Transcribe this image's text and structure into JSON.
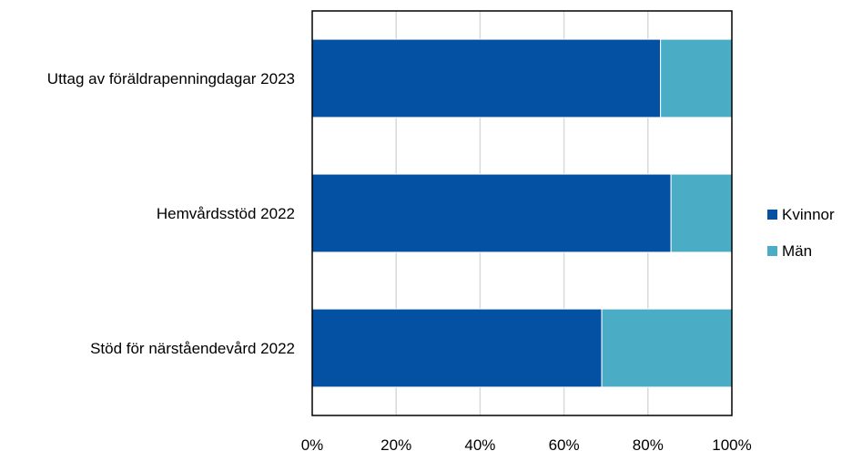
{
  "chart_data": {
    "type": "bar",
    "orientation": "horizontal",
    "stacked": true,
    "categories": [
      "Uttag av föräldrapenningdagar 2023",
      "Hemvårdsstöd 2022",
      "Stöd för närståendevård 2022"
    ],
    "series": [
      {
        "name": "Kvinnor",
        "values": [
          83,
          85.5,
          69
        ],
        "color": "#0451a4"
      },
      {
        "name": "Män",
        "values": [
          17,
          14.5,
          31
        ],
        "color": "#4bacc6"
      }
    ],
    "x_ticks": [
      "0%",
      "20%",
      "40%",
      "60%",
      "80%",
      "100%"
    ],
    "xlim": [
      0,
      100
    ],
    "grid": true,
    "legend_position": "right"
  }
}
